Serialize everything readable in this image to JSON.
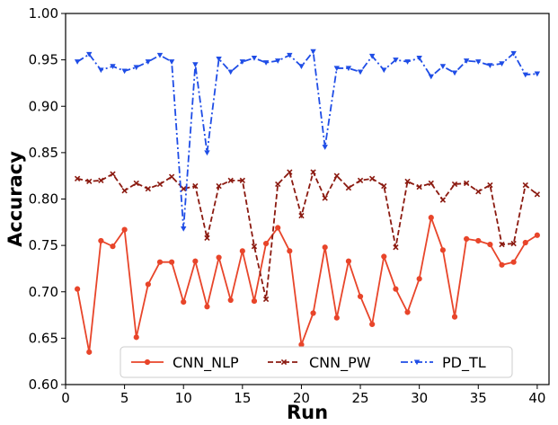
{
  "chart_data": {
    "type": "line",
    "title": "",
    "xlabel": "Run",
    "ylabel": "Accuracy",
    "xlim": [
      0,
      41
    ],
    "ylim": [
      0.6,
      1.0
    ],
    "xticks": [
      0,
      5,
      10,
      15,
      20,
      25,
      30,
      35,
      40
    ],
    "yticks": [
      0.6,
      0.65,
      0.7,
      0.75,
      0.8,
      0.85,
      0.9,
      0.95,
      1.0
    ],
    "xtick_labels": [
      "0",
      "5",
      "10",
      "15",
      "20",
      "25",
      "30",
      "35",
      "40"
    ],
    "ytick_labels": [
      "0.60",
      "0.65",
      "0.70",
      "0.75",
      "0.80",
      "0.85",
      "0.90",
      "0.95",
      "1.00"
    ],
    "grid": false,
    "legend_position": "bottom-center",
    "x": [
      1,
      2,
      3,
      4,
      5,
      6,
      7,
      8,
      9,
      10,
      11,
      12,
      13,
      14,
      15,
      16,
      17,
      18,
      19,
      20,
      21,
      22,
      23,
      24,
      25,
      26,
      27,
      28,
      29,
      30,
      31,
      32,
      33,
      34,
      35,
      36,
      37,
      38,
      39,
      40
    ],
    "series": [
      {
        "name": "CNN_NLP",
        "color": "#e8452a",
        "linestyle": "solid",
        "marker": "circle",
        "values": [
          0.703,
          0.635,
          0.755,
          0.749,
          0.767,
          0.651,
          0.708,
          0.732,
          0.732,
          0.689,
          0.733,
          0.684,
          0.737,
          0.691,
          0.744,
          0.69,
          0.752,
          0.769,
          0.744,
          0.643,
          0.677,
          0.748,
          0.672,
          0.733,
          0.695,
          0.665,
          0.738,
          0.703,
          0.678,
          0.714,
          0.78,
          0.745,
          0.673,
          0.757,
          0.755,
          0.751,
          0.729,
          0.732,
          0.753,
          0.761
        ]
      },
      {
        "name": "CNN_PW",
        "color": "#8b1a10",
        "linestyle": "dashed",
        "marker": "x",
        "values": [
          0.822,
          0.819,
          0.82,
          0.827,
          0.809,
          0.817,
          0.811,
          0.816,
          0.824,
          0.811,
          0.814,
          0.758,
          0.814,
          0.82,
          0.82,
          0.749,
          0.692,
          0.816,
          0.829,
          0.782,
          0.829,
          0.801,
          0.825,
          0.812,
          0.82,
          0.822,
          0.814,
          0.748,
          0.819,
          0.813,
          0.817,
          0.799,
          0.816,
          0.817,
          0.808,
          0.815,
          0.751,
          0.752,
          0.815,
          0.805
        ]
      },
      {
        "name": "PD_TL",
        "color": "#1f4de6",
        "linestyle": "dashdot",
        "marker": "triangle-down",
        "values": [
          0.948,
          0.956,
          0.939,
          0.943,
          0.938,
          0.942,
          0.948,
          0.955,
          0.948,
          0.768,
          0.945,
          0.85,
          0.951,
          0.937,
          0.948,
          0.952,
          0.947,
          0.949,
          0.955,
          0.943,
          0.959,
          0.856,
          0.941,
          0.941,
          0.937,
          0.954,
          0.939,
          0.95,
          0.948,
          0.952,
          0.932,
          0.943,
          0.936,
          0.949,
          0.948,
          0.944,
          0.946,
          0.957,
          0.934,
          0.935
        ]
      }
    ]
  }
}
